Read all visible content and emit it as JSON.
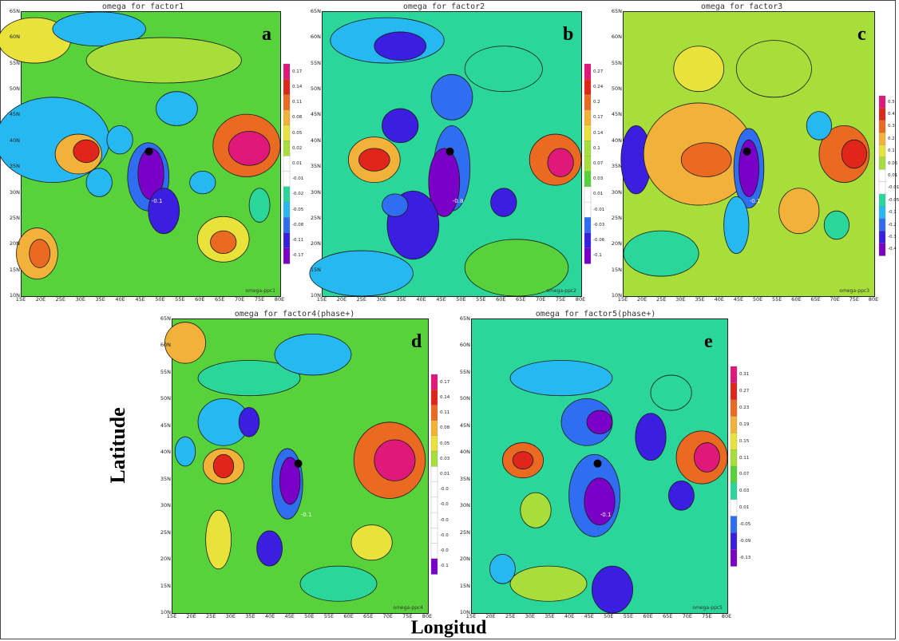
{
  "figure": {
    "ylabel": "Latitude",
    "xlabel": "Longitud"
  },
  "lat_labels": [
    "65N",
    "60N",
    "55N",
    "50N",
    "45N",
    "40N",
    "35N",
    "30N",
    "25N",
    "20N",
    "15N",
    "10N"
  ],
  "lon_labels": [
    "15E",
    "20E",
    "25E",
    "30E",
    "35E",
    "40E",
    "45E",
    "50E",
    "55E",
    "60E",
    "65E",
    "70E",
    "75E",
    "80E"
  ],
  "palette": [
    "#7a00c8",
    "#3a1fe0",
    "#2f6ef0",
    "#26b8f0",
    "#2ad69a",
    "#58d23a",
    "#a8de3a",
    "#e8e23a",
    "#f2b23a",
    "#ea6a22",
    "#e0261a",
    "#e0187a"
  ],
  "panels": [
    {
      "id": "a",
      "letter": "a",
      "title": "omega for factor1",
      "source": "omega-ppc1",
      "colorbar": [
        "0.17",
        "0.14",
        "0.11",
        "0.08",
        "0.05",
        "0.02",
        "0.01",
        "-0.01",
        "-0.02",
        "-0.05",
        "-0.08",
        "-0.11",
        "-0.17"
      ],
      "annotations": [
        "-0.1"
      ]
    },
    {
      "id": "b",
      "letter": "b",
      "title": "omega for factor2",
      "source": "omega-ppc2",
      "colorbar": [
        "0.27",
        "0.24",
        "0.2",
        "0.17",
        "0.14",
        "0.1",
        "0.07",
        "0.03",
        "0.01",
        "-0.01",
        "-0.03",
        "-0.06",
        "-0.1"
      ],
      "annotations": [
        "-0.8"
      ]
    },
    {
      "id": "c",
      "letter": "c",
      "title": "omega for factor3",
      "source": "omega-ppc3",
      "colorbar": [
        "0.5",
        "0.4",
        "0.3",
        "0.2",
        "0.1",
        "0.05",
        "0.01",
        "-0.01",
        "-0.05",
        "-0.1",
        "-0.2",
        "-0.3",
        "-0.4"
      ],
      "annotations": [
        "-0.1"
      ]
    },
    {
      "id": "d",
      "letter": "d",
      "title": "omega for factor4(phase+)",
      "source": "omega-ppc4",
      "colorbar": [
        "0.17",
        "0.14",
        "0.11",
        "0.08",
        "0.05",
        "0.03",
        "0.01",
        "-0.0",
        "-0.0",
        "-0.0",
        "-0.0",
        "-0.0",
        "-0.1"
      ],
      "annotations": [
        "-0.1"
      ]
    },
    {
      "id": "e",
      "letter": "e",
      "title": "omega for factor5(phase+)",
      "source": "omega-ppc5",
      "colorbar": [
        "0.31",
        "0.27",
        "0.23",
        "0.19",
        "0.15",
        "0.11",
        "0.07",
        "0.03",
        "0.01",
        "-0.05",
        "-0.09",
        "-0.13"
      ],
      "annotations": [
        "-0.1"
      ]
    }
  ]
}
